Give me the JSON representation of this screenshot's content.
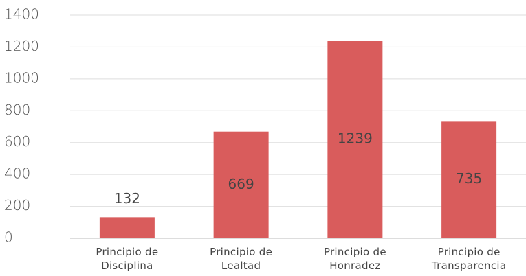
{
  "chart_data": {
    "type": "bar",
    "categories": [
      "Principio de Disciplina",
      "Principio de Lealtad",
      "Principio de Honradez",
      "Principio de Transparencia"
    ],
    "values": [
      132,
      669,
      1239,
      735
    ],
    "color": "#d95c5c",
    "ylim": [
      0,
      1400
    ],
    "yticks": [
      0,
      200,
      400,
      600,
      800,
      1000,
      1200,
      1400
    ],
    "grid": true
  }
}
